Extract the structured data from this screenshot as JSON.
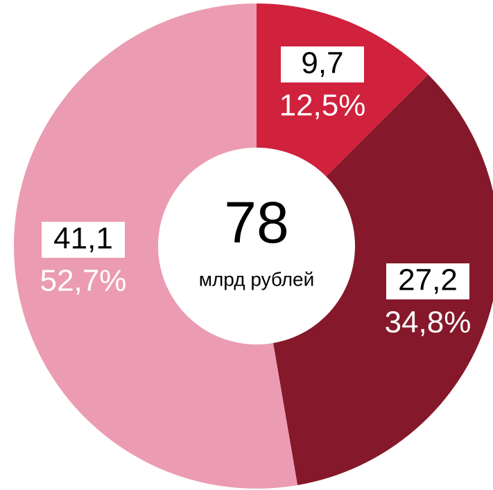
{
  "chart_data": {
    "type": "pie",
    "values": [
      12.5,
      34.8,
      52.7
    ],
    "value_labels": [
      "12,5%",
      "34,8%",
      "52,7%"
    ],
    "amounts": [
      9.7,
      27.2,
      41.1
    ],
    "amount_labels": [
      "9,7",
      "27,2",
      "41,1"
    ],
    "colors": [
      "#d0213d",
      "#85182a",
      "#eb9cb2"
    ],
    "center_value": 78,
    "center_label": "млрд рублей"
  }
}
